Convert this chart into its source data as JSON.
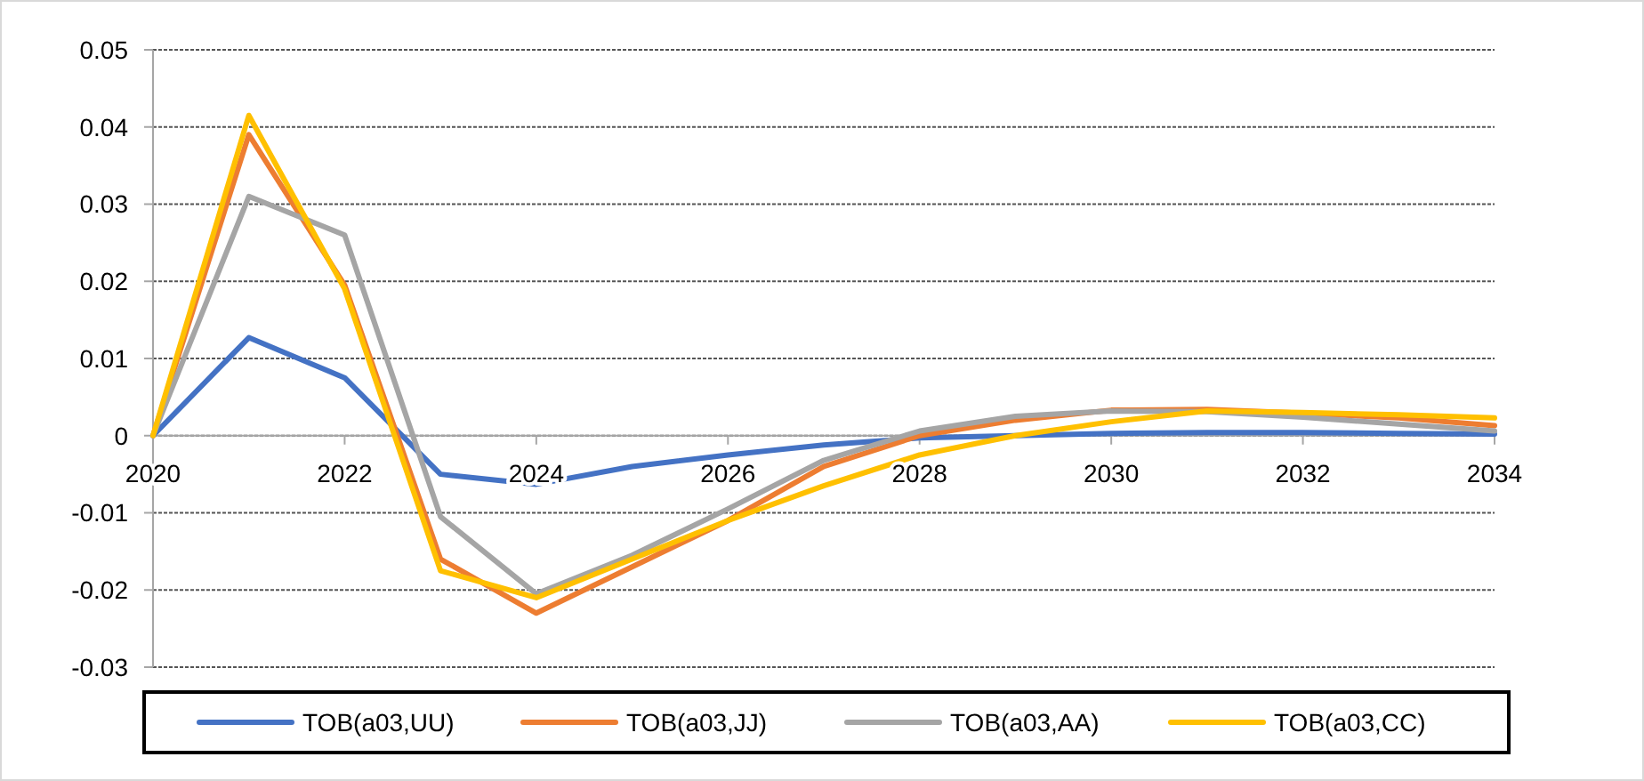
{
  "chart_data": {
    "type": "line",
    "x": [
      2020,
      2021,
      2022,
      2023,
      2024,
      2025,
      2026,
      2027,
      2028,
      2029,
      2030,
      2031,
      2032,
      2033,
      2034
    ],
    "series": [
      {
        "name": "TOB(a03,UU)",
        "color": "#4472c4",
        "values": [
          0,
          0.0127,
          0.0075,
          -0.005,
          -0.0063,
          -0.004,
          -0.0025,
          -0.0012,
          -0.0003,
          0,
          0.0003,
          0.0004,
          0.0004,
          0.0003,
          0.0002
        ]
      },
      {
        "name": "TOB(a03,JJ)",
        "color": "#ed7d31",
        "values": [
          0,
          0.039,
          0.0195,
          -0.016,
          -0.023,
          -0.017,
          -0.011,
          -0.004,
          0,
          0.002,
          0.0033,
          0.0034,
          0.0029,
          0.0023,
          0.0013
        ]
      },
      {
        "name": "TOB(a03,AA)",
        "color": "#a5a5a5",
        "values": [
          0,
          0.031,
          0.026,
          -0.0105,
          -0.0205,
          -0.0155,
          -0.0095,
          -0.0032,
          0.0006,
          0.0025,
          0.0032,
          0.0031,
          0.0024,
          0.0015,
          0.0006
        ]
      },
      {
        "name": "TOB(a03,CC)",
        "color": "#ffc000",
        "values": [
          0,
          0.0415,
          0.019,
          -0.0175,
          -0.021,
          -0.016,
          -0.011,
          -0.0065,
          -0.0025,
          0,
          0.0018,
          0.0032,
          0.003,
          0.0027,
          0.0023
        ]
      }
    ],
    "xlim": [
      2020,
      2034
    ],
    "xticks": [
      2020,
      2022,
      2024,
      2026,
      2028,
      2030,
      2032,
      2034
    ],
    "ylim": [
      -0.03,
      0.05
    ],
    "yticks": [
      -0.03,
      -0.02,
      -0.01,
      0,
      0.01,
      0.02,
      0.03,
      0.04,
      0.05
    ],
    "grid": "y",
    "legend": "bottom",
    "line_style": "solid"
  }
}
